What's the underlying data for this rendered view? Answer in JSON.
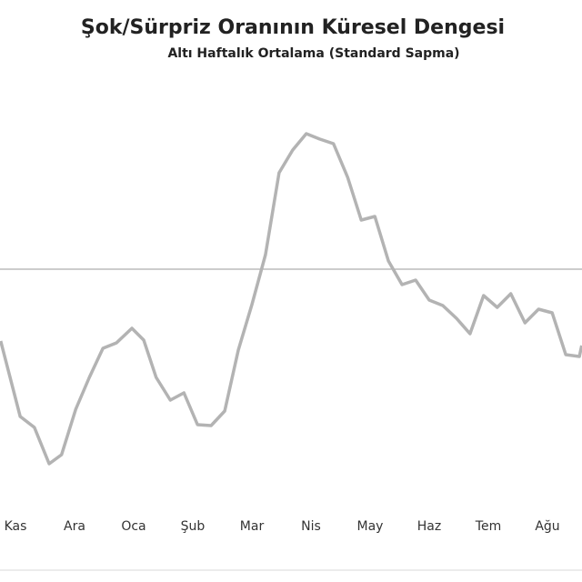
{
  "chart_data": {
    "type": "line",
    "title": "Şok/Sürpriz Oranının Küresel Dengesi",
    "subtitle": "Altı Haftalık Ortalama (Standard Sapma)",
    "xticks": [
      {
        "value": 0,
        "label": "Kas"
      },
      {
        "value": 1,
        "label": "Ara"
      },
      {
        "value": 2,
        "label": "Oca"
      },
      {
        "value": 3,
        "label": "Şub"
      },
      {
        "value": 4,
        "label": "Mar"
      },
      {
        "value": 5,
        "label": "Nis"
      },
      {
        "value": 6,
        "label": "May"
      },
      {
        "value": 7,
        "label": "Haz"
      },
      {
        "value": 8,
        "label": "Tem"
      },
      {
        "value": 9,
        "label": "Ağu"
      }
    ],
    "xlim": [
      -0.25,
      9.58
    ],
    "ylim": [
      -2.44,
      1.96
    ],
    "x": [
      -0.25,
      0.08,
      0.32,
      0.57,
      0.78,
      1.02,
      1.25,
      1.48,
      1.71,
      1.97,
      2.17,
      2.38,
      2.62,
      2.85,
      3.08,
      3.31,
      3.54,
      3.77,
      4.0,
      4.23,
      4.46,
      4.69,
      4.92,
      5.15,
      5.38,
      5.62,
      5.85,
      6.08,
      6.31,
      6.54,
      6.77,
      7.0,
      7.23,
      7.46,
      7.69,
      7.92,
      8.15,
      8.38,
      8.62,
      8.85,
      9.08,
      9.31,
      9.54,
      9.58
    ],
    "values": [
      -0.79,
      -1.62,
      -1.74,
      -2.14,
      -2.04,
      -1.54,
      -1.19,
      -0.87,
      -0.81,
      -0.65,
      -0.78,
      -1.19,
      -1.44,
      -1.36,
      -1.71,
      -1.72,
      -1.56,
      -0.89,
      -0.39,
      0.16,
      1.06,
      1.31,
      1.49,
      1.43,
      1.38,
      1.01,
      0.54,
      0.58,
      0.09,
      -0.17,
      -0.12,
      -0.34,
      -0.4,
      -0.54,
      -0.71,
      -0.29,
      -0.42,
      -0.27,
      -0.59,
      -0.44,
      -0.48,
      -0.94,
      -0.96,
      -0.84
    ],
    "color": "#b3b3b3"
  }
}
